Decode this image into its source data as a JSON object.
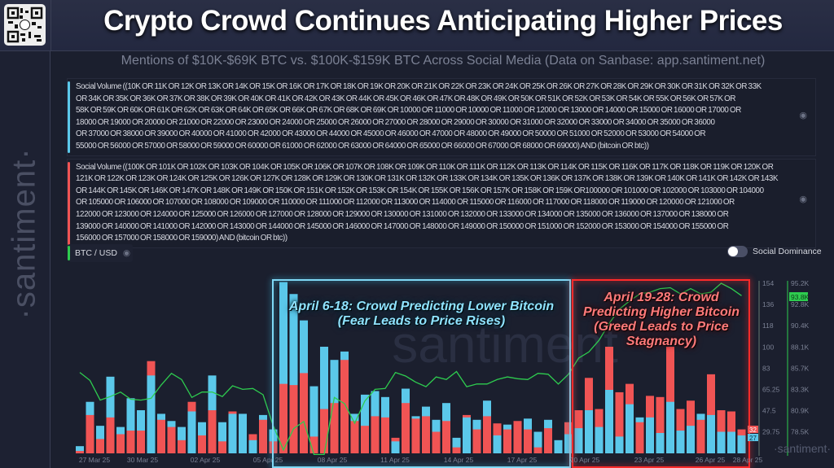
{
  "header": {
    "title": "Crypto Crowd Continues Anticipating Higher Prices",
    "subtitle": "Mentions of $10K-$69K BTC vs. $100K-$159K BTC Across Social Media (Data on Sanbase: app.santiment.net)",
    "qr_icon": "qr-code-icon"
  },
  "branding": {
    "watermark": "·santiment·"
  },
  "metrics": [
    {
      "color": "#5bc8ea",
      "lines": [
        "Social Volume ((10K OR 11K OR 12K OR 13K OR 14K OR 15K OR 16K OR 17K OR 18K OR 19K OR 20K OR 21K OR 22K OR 23K OR 24K OR 25K OR 26K OR 27K OR 28K OR 29K OR 30K OR 31K OR 32K OR 33K",
        "OR 34K OR 35K OR 36K OR 37K OR 38K OR 39K OR 40K OR 41K OR 42K OR 43K OR 44K OR 45K OR 46K OR 47K OR 48K OR 49K OR 50K OR 51K OR 52K OR 53K OR 54K OR 55K OR 56K OR 57K OR",
        "58K OR 59K OR 60K OR 61K OR 62K OR 63K OR 64K OR 65K OR 66K OR 67K OR 68K OR 69K OR 10000 OR 11000 OR 10000 OR 11000 OR 12000 OR 13000 OR 14000 OR 15000 OR 16000 OR 17000 OR",
        "18000 OR 19000 OR 20000 OR 21000 OR 22000 OR 23000 OR 24000 OR 25000 OR 26000 OR 27000 OR 28000 OR 29000 OR 30000 OR 31000 OR 32000 OR 33000 OR 34000 OR 35000 OR 36000",
        "OR 37000 OR 38000 OR 39000 OR 40000 OR 41000 OR 42000 OR 43000 OR 44000 OR 45000 OR 46000 OR 47000 OR 48000 OR 49000 OR 50000 OR 51000 OR 52000 OR 53000 OR 54000 OR",
        "55000 OR 56000 OR 57000 OR 58000 OR 59000 OR 60000 OR 61000 OR 62000 OR 63000 OR 64000 OR 65000 OR 66000 OR 67000 OR 68000 OR 69000) AND (bitcoin OR btc))"
      ]
    },
    {
      "color": "#f05454",
      "lines": [
        "Social Volume ((100K OR 101K OR 102K OR 103K OR 104K OR 105K OR 106K OR 107K OR 108K OR 109K OR 110K OR 111K OR 112K OR 113K OR 114K OR 115K OR 116K OR 117K OR 118K OR 119K OR 120K OR",
        "121K OR 122K OR 123K OR 124K OR 125K OR 126K OR 127K OR 128K OR 129K OR 130K OR 131K OR 132K OR 133K OR 134K OR 135K OR 136K OR 137K OR 138K OR 139K OR 140K OR 141K OR 142K OR 143K",
        "OR 144K OR 145K OR 146K OR 147K OR 148K OR 149K OR 150K OR 151K OR 152K OR 153K OR 154K OR 155K OR 156K OR 157K OR 158K OR 159K OR100000 OR 101000 OR 102000 OR 103000 OR 104000",
        "OR 105000 OR 106000 OR 107000 OR 108000 OR 109000 OR 110000 OR 111000 OR 112000 OR 113000 OR 114000 OR 115000 OR 116000 OR 117000 OR 118000 OR 119000 OR 120000 OR 121000 OR",
        "122000 OR 123000 OR 124000 OR 125000 OR 126000 OR 127000 OR 128000 OR 129000 OR 130000 OR 131000 OR 132000 OR 133000 OR 134000 OR 135000 OR 136000 OR 137000 OR 138000 OR",
        "139000 OR 140000 OR 141000 OR 142000 OR 143000 OR 144000 OR 145000 OR 146000 OR 147000 OR 148000 OR 149000 OR 150000 OR 151000 OR 152000 OR 153000 OR 154000 OR 155000 OR",
        "156000 OR 157000 OR 158000 OR 159000) AND (bitcoin OR btc))"
      ]
    }
  ],
  "btc_pill": {
    "label": "BTC / USD",
    "color": "#2ecc4f"
  },
  "social_dominance": {
    "label": "Social Dominance",
    "enabled": false
  },
  "annotations": {
    "blue": "April 6-18: Crowd Predicting Lower Bitcoin (Fear Leads to Price Rises)",
    "red": "April 19-28: Crowd Predicting Higher Bitcoin (Greed Leads to Price Stagnancy)"
  },
  "chart_data": {
    "type": "bar",
    "x_tick_labels": [
      "27 Mar 25",
      "30 Mar 25",
      "02 Apr 25",
      "05 Apr 25",
      "08 Apr 25",
      "11 Apr 25",
      "14 Apr 25",
      "17 Apr 25",
      "20 Apr 25",
      "23 Apr 25",
      "26 Apr 25",
      "28 Apr 25"
    ],
    "left_axis": {
      "ticks": [
        "154",
        "136",
        "118",
        "100",
        "83",
        "65.25",
        "47.5",
        "29.75"
      ],
      "ylim": [
        12,
        154
      ]
    },
    "right_axis": {
      "ticks": [
        "95.2K",
        "92.8K",
        "90.4K",
        "88.1K",
        "85.7K",
        "83.3K",
        "80.9K",
        "78.5K"
      ],
      "ylim": [
        78.5,
        95.2
      ],
      "current_label": "93.8K"
    },
    "last_values": {
      "red": "32",
      "blue": "27"
    },
    "series": [
      {
        "color": "#5bc8ea",
        "axis": "left",
        "values": [
          18,
          55,
          35,
          76,
          34,
          58,
          48,
          77,
          45,
          39,
          34,
          47,
          38,
          77,
          38,
          45,
          45,
          23,
          44,
          32,
          155,
          145,
          123,
          68,
          101,
          90,
          97,
          45,
          61,
          64,
          59,
          22,
          66,
          43,
          51,
          40,
          54,
          25,
          42,
          40,
          56,
          27,
          36,
          12,
          41,
          30,
          40,
          23,
          28,
          33,
          48,
          34,
          65,
          26,
          53,
          42,
          42,
          29,
          55,
          31,
          35,
          45,
          44,
          30,
          30,
          27
        ]
      },
      {
        "color": "#f05454",
        "axis": "left",
        "values": [
          14,
          44,
          24,
          42,
          28,
          31,
          31,
          89,
          40,
          34,
          23,
          55,
          27,
          48,
          22,
          47,
          12,
          28,
          40,
          22,
          70,
          69,
          79,
          26,
          49,
          54,
          90,
          39,
          35,
          43,
          42,
          25,
          54,
          41,
          43,
          30,
          39,
          17,
          44,
          32,
          43,
          37,
          32,
          39,
          32,
          17,
          33,
          12,
          38,
          48,
          75,
          49,
          101,
          63,
          70,
          38,
          60,
          59,
          101,
          49,
          56,
          40,
          78,
          48,
          47,
          32
        ]
      },
      {
        "color": "#2ecc4f",
        "axis": "right",
        "type": "line",
        "values": [
          85.2,
          84.3,
          82.1,
          82.5,
          83.0,
          82.2,
          82.1,
          82.3,
          83.8,
          85.1,
          84.4,
          82.4,
          83.0,
          83.0,
          82.5,
          83.7,
          83.3,
          83.4,
          82.7,
          79.2,
          76.5,
          78.9,
          79.7,
          76.0,
          76.0,
          82.4,
          81.7,
          79.5,
          82.0,
          83.3,
          83.4,
          85.2,
          84.8,
          84.1,
          83.6,
          84.7,
          84.4,
          85.3,
          83.6,
          83.9,
          83.9,
          84.4,
          84.7,
          84.5,
          84.4,
          85.1,
          85.0,
          83.9,
          85.0,
          86.8,
          87.5,
          88.8,
          90.7,
          92.3,
          93.2,
          94.0,
          94.2,
          94.6,
          94.7,
          94.0,
          94.6,
          94.0,
          94.2,
          95.2,
          94.6,
          93.8
        ]
      }
    ]
  }
}
